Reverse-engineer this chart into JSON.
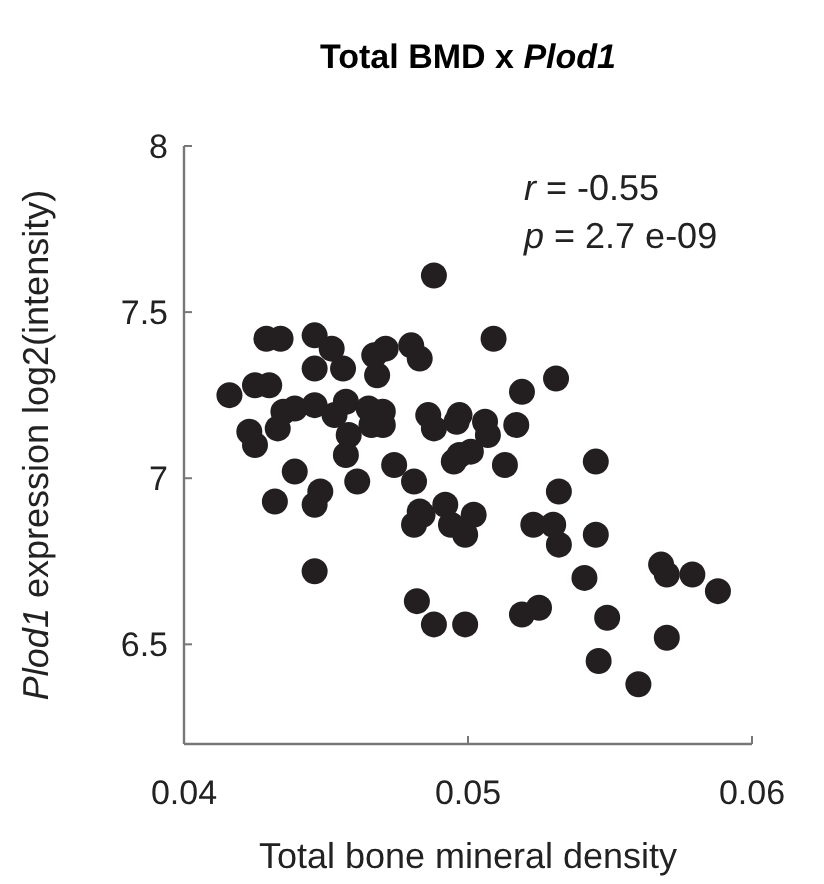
{
  "chart_data": {
    "type": "scatter",
    "title": "Total BMD x Plod1",
    "xlabel": "Total bone mineral density",
    "ylabel": "Plod1 expression log2(intensity)",
    "annotations": [
      "r = -0.55",
      "p = 2.7 e-09"
    ],
    "xlim": [
      0.04,
      0.06
    ],
    "xticks": [
      0.04,
      0.05,
      0.06
    ],
    "ylim": [
      6.2,
      8
    ],
    "yticks": [
      6.5,
      7,
      7.5,
      8
    ],
    "marker": "circle",
    "series": [
      {
        "color": "#231f20",
        "x": [
          0.0416,
          0.0425,
          0.043,
          0.0429,
          0.0434,
          0.0446,
          0.0452,
          0.0446,
          0.0456,
          0.0423,
          0.0425,
          0.0433,
          0.0435,
          0.0439,
          0.0446,
          0.0453,
          0.0457,
          0.0458,
          0.0457,
          0.0461,
          0.0465,
          0.047,
          0.0466,
          0.047,
          0.0468,
          0.0467,
          0.0471,
          0.048,
          0.0483,
          0.0488,
          0.0474,
          0.0481,
          0.0439,
          0.0432,
          0.0448,
          0.0446,
          0.0486,
          0.0488,
          0.0497,
          0.0495,
          0.0501,
          0.0483,
          0.0492,
          0.0446,
          0.0482,
          0.0488,
          0.0499,
          0.0481,
          0.0484,
          0.0494,
          0.0499,
          0.0502,
          0.0519,
          0.0525,
          0.0546,
          0.056,
          0.0549,
          0.057,
          0.0541,
          0.0545,
          0.0568,
          0.057,
          0.0579,
          0.0588,
          0.0523,
          0.053,
          0.0532,
          0.0532,
          0.0545,
          0.0513,
          0.0509,
          0.0531,
          0.0519,
          0.0517,
          0.0496,
          0.0506,
          0.0507,
          0.0497
        ],
        "values": [
          7.25,
          7.28,
          7.28,
          7.42,
          7.42,
          7.43,
          7.39,
          7.33,
          7.33,
          7.14,
          7.1,
          7.15,
          7.2,
          7.21,
          7.22,
          7.19,
          7.23,
          7.13,
          7.07,
          6.99,
          7.21,
          7.2,
          7.16,
          7.16,
          7.31,
          7.37,
          7.39,
          7.4,
          7.36,
          7.61,
          7.04,
          6.99,
          7.02,
          6.93,
          6.96,
          6.92,
          7.19,
          7.15,
          7.19,
          7.05,
          7.08,
          6.9,
          6.92,
          6.72,
          6.63,
          6.56,
          6.56,
          6.86,
          6.89,
          6.86,
          6.83,
          6.89,
          6.59,
          6.61,
          6.45,
          6.38,
          6.58,
          6.52,
          6.7,
          6.83,
          6.74,
          6.71,
          6.71,
          6.66,
          6.86,
          6.86,
          6.8,
          6.96,
          7.05,
          7.04,
          7.42,
          7.3,
          7.26,
          7.16,
          7.17,
          7.17,
          7.13,
          7.07
        ]
      }
    ]
  }
}
